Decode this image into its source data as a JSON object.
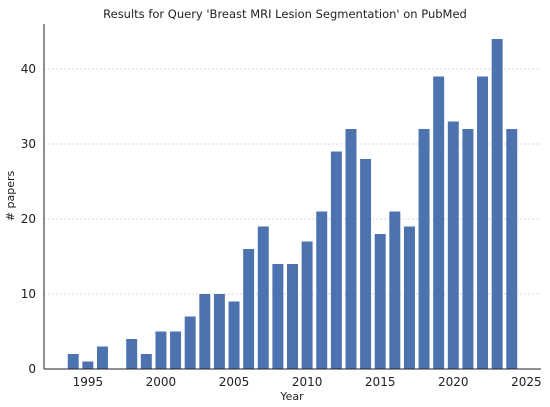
{
  "chart_data": {
    "type": "bar",
    "title": "Results for Query 'Breast MRI Lesion Segmentation' on PubMed",
    "xlabel": "Year",
    "ylabel": "# papers",
    "xlim": [
      1992,
      2026
    ],
    "ylim": [
      0,
      46
    ],
    "x_ticks": [
      1995,
      2000,
      2005,
      2010,
      2015,
      2020,
      2025
    ],
    "y_ticks": [
      0,
      10,
      20,
      30,
      40
    ],
    "grid": "horizontal-dashed",
    "legend": "none",
    "bar_color": "#4c72b0",
    "series": [
      {
        "x": [
          1994,
          1995,
          1996,
          1998,
          1999,
          2000,
          2001,
          2002,
          2003,
          2004,
          2005,
          2006,
          2007,
          2008,
          2009,
          2010,
          2011,
          2012,
          2013,
          2014,
          2015,
          2016,
          2017,
          2018,
          2019,
          2020,
          2021,
          2022,
          2023,
          2024
        ],
        "values": [
          2,
          1,
          3,
          4,
          2,
          5,
          5,
          7,
          10,
          10,
          9,
          16,
          19,
          14,
          14,
          17,
          21,
          29,
          32,
          28,
          18,
          21,
          19,
          32,
          39,
          33,
          32,
          39,
          44,
          32
        ]
      }
    ]
  }
}
